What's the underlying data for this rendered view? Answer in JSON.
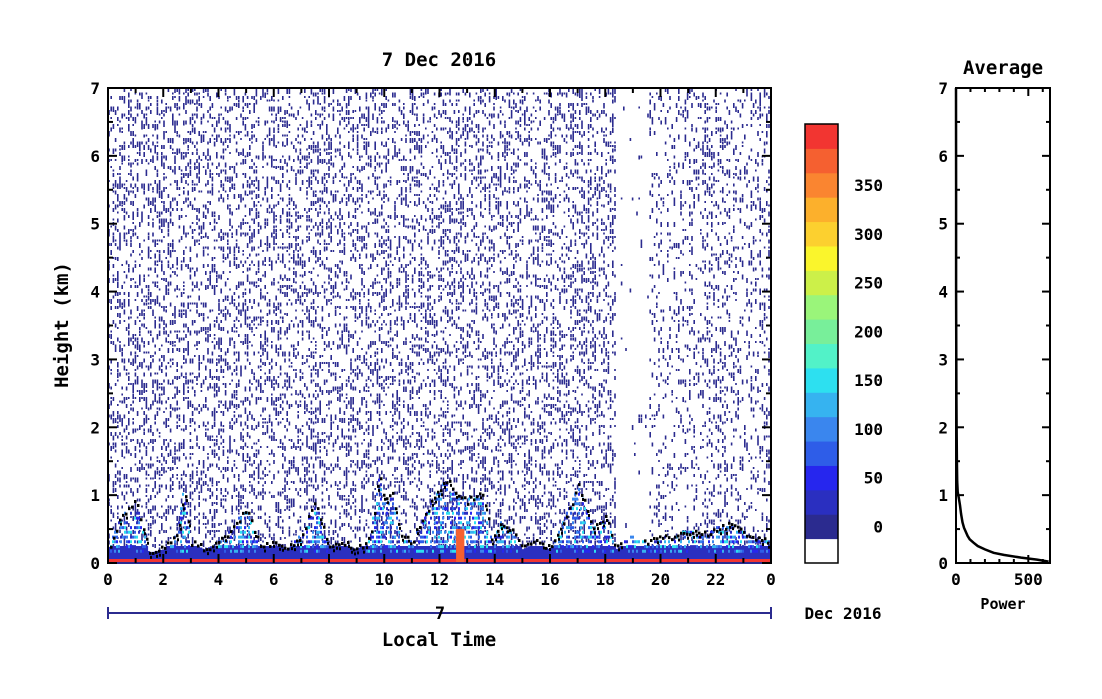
{
  "chart_data": [
    {
      "type": "heatmap",
      "title": "7 Dec 2016",
      "xlabel": "Local Time",
      "ylabel": "Height (km)",
      "xlim": [
        0,
        24
      ],
      "ylim": [
        0,
        7
      ],
      "x_ticks": [
        "0",
        "2",
        "4",
        "6",
        "8",
        "10",
        "12",
        "14",
        "16",
        "18",
        "20",
        "22",
        "0"
      ],
      "y_ticks": [
        "0",
        "1",
        "2",
        "3",
        "4",
        "5",
        "6",
        "7"
      ],
      "date_axis": {
        "day_label": "7",
        "month_label": "Dec 2016"
      },
      "data_gap_hours": [
        18.4,
        19.6
      ],
      "cloud_layer": {
        "hours": [
          0,
          0.5,
          1,
          1.5,
          2,
          2.5,
          2.75,
          3,
          3.5,
          4,
          4.5,
          5,
          5.5,
          6,
          6.5,
          7,
          7.5,
          8,
          8.5,
          9,
          9.5,
          9.8,
          10,
          10.3,
          10.6,
          11,
          11.3,
          11.6,
          12,
          12.3,
          12.6,
          13,
          13.3,
          13.6,
          13.9,
          14.2,
          14.6,
          15,
          15.5,
          16,
          16.5,
          16.8,
          17,
          17.3,
          17.6,
          18,
          18.4,
          19,
          19.5,
          20,
          20.5,
          21,
          21.5,
          22,
          22.5,
          23,
          23.5,
          24
        ],
        "top_km": [
          0.2,
          0.7,
          0.9,
          0.15,
          0.2,
          0.4,
          1.1,
          0.3,
          0.2,
          0.3,
          0.5,
          0.8,
          0.25,
          0.3,
          0.2,
          0.4,
          0.9,
          0.25,
          0.3,
          0.2,
          0.35,
          1.3,
          0.9,
          1.0,
          0.4,
          0.3,
          0.6,
          0.8,
          1.1,
          1.2,
          1.0,
          0.9,
          1.0,
          0.95,
          0.3,
          0.6,
          0.5,
          0.2,
          0.3,
          0.2,
          0.6,
          0.9,
          1.2,
          0.8,
          0.5,
          0.7,
          0.2,
          0.4,
          0.3,
          0.35,
          0.4,
          0.45,
          0.4,
          0.5,
          0.55,
          0.45,
          0.35,
          0.3
        ]
      },
      "colorbar": {
        "ticks": [
          "0",
          "50",
          "100",
          "150",
          "200",
          "250",
          "300",
          "350"
        ],
        "colors": [
          "#ffffff",
          "#2b2b8f",
          "#2a2fc0",
          "#2626ee",
          "#2e5de8",
          "#3a86ee",
          "#36b3f0",
          "#2de0f0",
          "#52f2c8",
          "#78ef9a",
          "#9af57a",
          "#ccf049",
          "#faf52c",
          "#fcd02f",
          "#fcb02c",
          "#fa8530",
          "#f56030",
          "#f23531"
        ]
      }
    },
    {
      "type": "line",
      "title": "Average",
      "xlabel": "Power",
      "ylabel": "",
      "xlim": [
        0,
        650
      ],
      "ylim": [
        0,
        7
      ],
      "x_ticks": [
        "0",
        "500"
      ],
      "y_ticks": [
        "0",
        "1",
        "2",
        "3",
        "4",
        "5",
        "6",
        "7"
      ],
      "series": [
        {
          "x": [
            640,
            560,
            450,
            330,
            260,
            200,
            150,
            120,
            95,
            80,
            70,
            55,
            45,
            35,
            28,
            20,
            12,
            8,
            6,
            4,
            3,
            2,
            1,
            1,
            0
          ],
          "y": [
            0.02,
            0.05,
            0.08,
            0.12,
            0.15,
            0.2,
            0.25,
            0.3,
            0.35,
            0.4,
            0.45,
            0.52,
            0.6,
            0.72,
            0.85,
            0.95,
            1.05,
            1.2,
            1.5,
            2.0,
            2.5,
            3.0,
            4.0,
            5.5,
            7.0
          ]
        }
      ]
    }
  ]
}
